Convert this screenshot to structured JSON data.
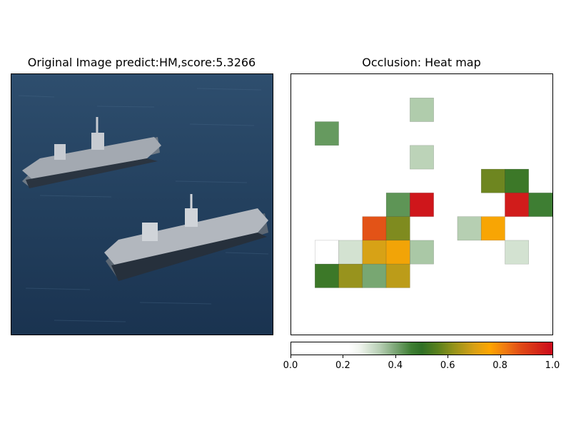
{
  "left_panel": {
    "title": "Original Image predict:HM,score:5.3266"
  },
  "right_panel": {
    "title": "Occlusion: Heat map"
  },
  "colors": {
    "sea_dark": "#1d3550",
    "sea_mid": "#2c4d6e",
    "ship_deck": "#8e949c",
    "ship_hull": "#c9ccd2",
    "cmap": [
      "#ffffff",
      "#ffffff",
      "#b6ceb3",
      "#2f6f26",
      "#93921a",
      "#ffa500",
      "#e04a16",
      "#cc0a1c"
    ]
  },
  "chart_data": {
    "type": "heatmap",
    "title": "Occlusion: Heat map",
    "grid_size": 11,
    "cells": [
      {
        "row": 1,
        "col": 5,
        "value": 0.35
      },
      {
        "row": 2,
        "col": 1,
        "value": 0.43
      },
      {
        "row": 3,
        "col": 5,
        "value": 0.33
      },
      {
        "row": 4,
        "col": 8,
        "value": 0.58
      },
      {
        "row": 4,
        "col": 9,
        "value": 0.52
      },
      {
        "row": 5,
        "col": 4,
        "value": 0.44
      },
      {
        "row": 5,
        "col": 5,
        "value": 0.98
      },
      {
        "row": 5,
        "col": 9,
        "value": 0.97
      },
      {
        "row": 5,
        "col": 10,
        "value": 0.48
      },
      {
        "row": 6,
        "col": 3,
        "value": 0.88
      },
      {
        "row": 6,
        "col": 4,
        "value": 0.6
      },
      {
        "row": 6,
        "col": 7,
        "value": 0.34
      },
      {
        "row": 6,
        "col": 8,
        "value": 0.75
      },
      {
        "row": 7,
        "col": 1,
        "value": 0.22
      },
      {
        "row": 7,
        "col": 2,
        "value": 0.29
      },
      {
        "row": 7,
        "col": 3,
        "value": 0.7
      },
      {
        "row": 7,
        "col": 4,
        "value": 0.74
      },
      {
        "row": 7,
        "col": 5,
        "value": 0.36
      },
      {
        "row": 7,
        "col": 9,
        "value": 0.29
      },
      {
        "row": 8,
        "col": 1,
        "value": 0.52
      },
      {
        "row": 8,
        "col": 2,
        "value": 0.63
      },
      {
        "row": 8,
        "col": 3,
        "value": 0.41
      },
      {
        "row": 8,
        "col": 4,
        "value": 0.67
      }
    ],
    "colorbar": {
      "range": [
        0.0,
        1.0
      ],
      "ticks": [
        "0.0",
        "0.2",
        "0.4",
        "0.6",
        "0.8",
        "1.0"
      ]
    }
  }
}
